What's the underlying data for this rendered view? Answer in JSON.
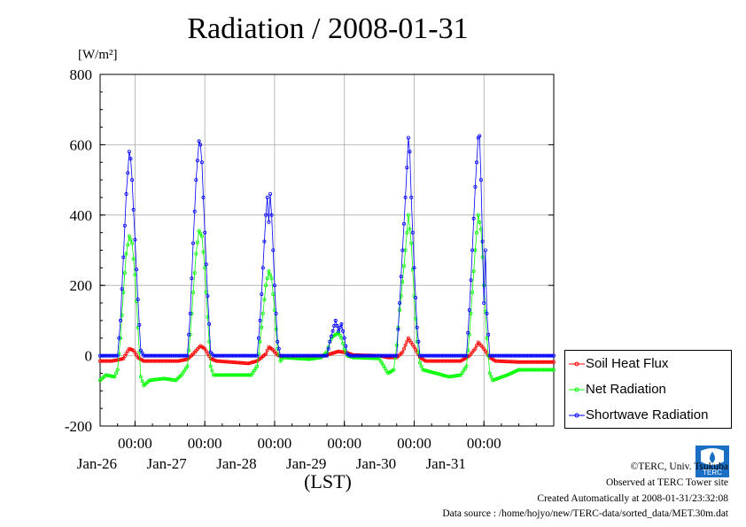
{
  "title": "Radiation / 2008-01-31",
  "unit": "[W/m²]",
  "xlabel": "(LST)",
  "legend": [
    {
      "label": "Soil Heat Flux",
      "color": "#ff0000"
    },
    {
      "label": "Net Radiation",
      "color": "#00ff00"
    },
    {
      "label": "Shortwave Radiation",
      "color": "#0000ff"
    }
  ],
  "credits": {
    "copyright": "©TERC, Univ. Tsukuba",
    "observed": "Observed at TERC Tower site",
    "created": "Created Automatically at 2008-01-31/23:32:08",
    "source": "Data source : /home/hojyo/new/TERC-data/sorted_data/MET.30m.dat"
  },
  "logo_text": "TERC",
  "chart_data": {
    "type": "line",
    "title": "Radiation / 2008-01-31",
    "ylabel": "[W/m²]",
    "xlabel": "(LST)",
    "ylim": [
      -200,
      800
    ],
    "yticks": [
      -200,
      0,
      200,
      400,
      600,
      800
    ],
    "xlim": [
      "2008-01-25T12:00",
      "2008-02-01T00:00"
    ],
    "xticks": [
      "00:00",
      "00:00",
      "00:00",
      "00:00",
      "00:00",
      "00:00"
    ],
    "xtick_days": [
      "Jan-26",
      "Jan-27",
      "Jan-28",
      "Jan-29",
      "Jan-30",
      "Jan-31"
    ],
    "xtick_times": [
      "2008-01-26T00:00",
      "2008-01-27T00:00",
      "2008-01-28T00:00",
      "2008-01-29T00:00",
      "2008-01-30T00:00",
      "2008-01-31T00:00"
    ],
    "grid": true,
    "legend_position": "right",
    "series": [
      {
        "name": "Soil Heat Flux",
        "color": "#ff0000",
        "points": [
          [
            "2008-01-25T12:00",
            -15
          ],
          [
            "2008-01-25T16:00",
            -15
          ],
          [
            "2008-01-25T18:00",
            -12
          ],
          [
            "2008-01-25T20:00",
            -8
          ],
          [
            "2008-01-25T22:00",
            20
          ],
          [
            "2008-01-25T23:30",
            15
          ],
          [
            "2008-01-26T01:00",
            -5
          ],
          [
            "2008-01-26T03:00",
            -15
          ],
          [
            "2008-01-26T10:00",
            -15
          ],
          [
            "2008-01-26T15:00",
            -15
          ],
          [
            "2008-01-26T18:00",
            -10
          ],
          [
            "2008-01-26T20:00",
            5
          ],
          [
            "2008-01-26T22:30",
            28
          ],
          [
            "2008-01-27T00:00",
            20
          ],
          [
            "2008-01-27T02:00",
            -8
          ],
          [
            "2008-01-27T04:00",
            -15
          ],
          [
            "2008-01-27T12:00",
            -20
          ],
          [
            "2008-01-27T15:00",
            -22
          ],
          [
            "2008-01-27T18:00",
            -15
          ],
          [
            "2008-01-27T21:00",
            5
          ],
          [
            "2008-01-27T22:00",
            25
          ],
          [
            "2008-01-27T23:00",
            20
          ],
          [
            "2008-01-28T01:00",
            2
          ],
          [
            "2008-01-28T03:00",
            -5
          ],
          [
            "2008-01-28T12:00",
            -5
          ],
          [
            "2008-01-28T16:00",
            -3
          ],
          [
            "2008-01-28T19:00",
            5
          ],
          [
            "2008-01-28T22:00",
            12
          ],
          [
            "2008-01-29T01:00",
            8
          ],
          [
            "2008-01-29T03:00",
            2
          ],
          [
            "2008-01-29T12:00",
            0
          ],
          [
            "2008-01-29T15:00",
            -5
          ],
          [
            "2008-01-29T18:00",
            -5
          ],
          [
            "2008-01-29T20:00",
            10
          ],
          [
            "2008-01-29T22:00",
            50
          ],
          [
            "2008-01-30T00:00",
            25
          ],
          [
            "2008-01-30T02:00",
            -5
          ],
          [
            "2008-01-30T04:00",
            -15
          ],
          [
            "2008-01-30T12:00",
            -15
          ],
          [
            "2008-01-30T16:00",
            -15
          ],
          [
            "2008-01-30T19:00",
            0
          ],
          [
            "2008-01-30T21:00",
            20
          ],
          [
            "2008-01-30T22:00",
            38
          ],
          [
            "2008-01-30T23:30",
            25
          ],
          [
            "2008-01-31T02:00",
            -5
          ],
          [
            "2008-01-31T04:00",
            -15
          ],
          [
            "2008-01-31T12:00",
            -18
          ]
        ]
      },
      {
        "name": "Net Radiation",
        "color": "#00ff00",
        "points": [
          [
            "2008-01-25T12:00",
            -70
          ],
          [
            "2008-01-25T14:00",
            -55
          ],
          [
            "2008-01-25T17:00",
            -60
          ],
          [
            "2008-01-25T18:00",
            -40
          ],
          [
            "2008-01-25T19:00",
            50
          ],
          [
            "2008-01-25T20:00",
            180
          ],
          [
            "2008-01-25T21:00",
            290
          ],
          [
            "2008-01-25T22:00",
            340
          ],
          [
            "2008-01-25T23:00",
            320
          ],
          [
            "2008-01-26T00:00",
            230
          ],
          [
            "2008-01-26T01:00",
            80
          ],
          [
            "2008-01-26T02:00",
            -60
          ],
          [
            "2008-01-26T03:00",
            -85
          ],
          [
            "2008-01-26T05:00",
            -70
          ],
          [
            "2008-01-26T10:00",
            -65
          ],
          [
            "2008-01-26T14:00",
            -70
          ],
          [
            "2008-01-26T16:00",
            -55
          ],
          [
            "2008-01-26T18:00",
            -30
          ],
          [
            "2008-01-26T19:00",
            60
          ],
          [
            "2008-01-26T20:00",
            180
          ],
          [
            "2008-01-26T21:00",
            290
          ],
          [
            "2008-01-26T22:00",
            355
          ],
          [
            "2008-01-26T23:00",
            340
          ],
          [
            "2008-01-27T00:00",
            250
          ],
          [
            "2008-01-27T01:00",
            110
          ],
          [
            "2008-01-27T02:00",
            -30
          ],
          [
            "2008-01-27T03:00",
            -55
          ],
          [
            "2008-01-27T12:00",
            -55
          ],
          [
            "2008-01-27T16:00",
            -55
          ],
          [
            "2008-01-27T18:00",
            -30
          ],
          [
            "2008-01-27T19:00",
            40
          ],
          [
            "2008-01-27T20:00",
            120
          ],
          [
            "2008-01-27T21:00",
            200
          ],
          [
            "2008-01-27T22:00",
            240
          ],
          [
            "2008-01-27T23:00",
            220
          ],
          [
            "2008-01-28T00:00",
            130
          ],
          [
            "2008-01-28T01:00",
            20
          ],
          [
            "2008-01-28T02:00",
            -15
          ],
          [
            "2008-01-28T03:00",
            -5
          ],
          [
            "2008-01-28T12:00",
            -10
          ],
          [
            "2008-01-28T16:00",
            -5
          ],
          [
            "2008-01-28T18:00",
            10
          ],
          [
            "2008-01-28T19:00",
            40
          ],
          [
            "2008-01-28T20:00",
            55
          ],
          [
            "2008-01-28T21:00",
            60
          ],
          [
            "2008-01-28T22:00",
            65
          ],
          [
            "2008-01-28T23:00",
            50
          ],
          [
            "2008-01-29T00:00",
            20
          ],
          [
            "2008-01-29T01:00",
            0
          ],
          [
            "2008-01-29T03:00",
            -5
          ],
          [
            "2008-01-29T12:00",
            -8
          ],
          [
            "2008-01-29T15:00",
            -50
          ],
          [
            "2008-01-29T17:00",
            -40
          ],
          [
            "2008-01-29T18:00",
            30
          ],
          [
            "2008-01-29T19:00",
            130
          ],
          [
            "2008-01-29T20:00",
            210
          ],
          [
            "2008-01-29T21:00",
            300
          ],
          [
            "2008-01-29T22:00",
            400
          ],
          [
            "2008-01-29T23:00",
            320
          ],
          [
            "2008-01-30T00:00",
            170
          ],
          [
            "2008-01-30T01:00",
            40
          ],
          [
            "2008-01-30T02:00",
            -20
          ],
          [
            "2008-01-30T03:00",
            -40
          ],
          [
            "2008-01-30T12:00",
            -60
          ],
          [
            "2008-01-30T16:00",
            -55
          ],
          [
            "2008-01-30T18:00",
            -30
          ],
          [
            "2008-01-30T19:00",
            60
          ],
          [
            "2008-01-30T20:00",
            180
          ],
          [
            "2008-01-30T21:00",
            300
          ],
          [
            "2008-01-30T22:00",
            400
          ],
          [
            "2008-01-30T23:00",
            360
          ],
          [
            "2008-01-31T00:00",
            200
          ],
          [
            "2008-01-31T01:00",
            50
          ],
          [
            "2008-01-31T02:00",
            -50
          ],
          [
            "2008-01-31T03:00",
            -70
          ],
          [
            "2008-01-31T08:00",
            -55
          ],
          [
            "2008-01-31T12:00",
            -40
          ]
        ]
      },
      {
        "name": "Shortwave Radiation",
        "color": "#0000ff",
        "points": [
          [
            "2008-01-25T12:00",
            0
          ],
          [
            "2008-01-25T18:00",
            0
          ],
          [
            "2008-01-25T19:00",
            100
          ],
          [
            "2008-01-25T20:00",
            280
          ],
          [
            "2008-01-25T21:00",
            460
          ],
          [
            "2008-01-25T22:00",
            580
          ],
          [
            "2008-01-25T22:30",
            560
          ],
          [
            "2008-01-25T23:00",
            500
          ],
          [
            "2008-01-26T00:00",
            330
          ],
          [
            "2008-01-26T01:00",
            160
          ],
          [
            "2008-01-26T02:00",
            15
          ],
          [
            "2008-01-26T03:00",
            0
          ],
          [
            "2008-01-26T18:00",
            0
          ],
          [
            "2008-01-26T19:00",
            120
          ],
          [
            "2008-01-26T20:00",
            320
          ],
          [
            "2008-01-26T21:00",
            500
          ],
          [
            "2008-01-26T22:00",
            610
          ],
          [
            "2008-01-26T22:30",
            600
          ],
          [
            "2008-01-26T23:00",
            550
          ],
          [
            "2008-01-27T00:00",
            350
          ],
          [
            "2008-01-27T01:00",
            170
          ],
          [
            "2008-01-27T02:00",
            10
          ],
          [
            "2008-01-27T03:00",
            0
          ],
          [
            "2008-01-27T18:00",
            0
          ],
          [
            "2008-01-27T19:00",
            100
          ],
          [
            "2008-01-27T20:00",
            250
          ],
          [
            "2008-01-27T21:00",
            400
          ],
          [
            "2008-01-27T21:30",
            450
          ],
          [
            "2008-01-27T22:00",
            380
          ],
          [
            "2008-01-27T22:30",
            460
          ],
          [
            "2008-01-27T23:00",
            400
          ],
          [
            "2008-01-28T00:00",
            200
          ],
          [
            "2008-01-28T01:00",
            40
          ],
          [
            "2008-01-28T02:00",
            0
          ],
          [
            "2008-01-28T18:00",
            0
          ],
          [
            "2008-01-28T19:00",
            40
          ],
          [
            "2008-01-28T20:00",
            70
          ],
          [
            "2008-01-28T21:00",
            100
          ],
          [
            "2008-01-28T22:00",
            70
          ],
          [
            "2008-01-28T23:00",
            90
          ],
          [
            "2008-01-29T00:00",
            50
          ],
          [
            "2008-01-29T01:00",
            5
          ],
          [
            "2008-01-29T02:00",
            0
          ],
          [
            "2008-01-29T18:00",
            0
          ],
          [
            "2008-01-29T19:00",
            150
          ],
          [
            "2008-01-29T20:00",
            300
          ],
          [
            "2008-01-29T21:00",
            450
          ],
          [
            "2008-01-29T22:00",
            620
          ],
          [
            "2008-01-29T22:30",
            580
          ],
          [
            "2008-01-29T23:00",
            450
          ],
          [
            "2008-01-30T00:00",
            250
          ],
          [
            "2008-01-30T01:00",
            80
          ],
          [
            "2008-01-30T02:00",
            0
          ],
          [
            "2008-01-30T18:00",
            0
          ],
          [
            "2008-01-30T19:00",
            130
          ],
          [
            "2008-01-30T20:00",
            300
          ],
          [
            "2008-01-30T21:00",
            480
          ],
          [
            "2008-01-30T22:00",
            620
          ],
          [
            "2008-01-30T22:30",
            625
          ],
          [
            "2008-01-30T23:00",
            500
          ],
          [
            "2008-01-31T00:00",
            150
          ],
          [
            "2008-01-31T00:30",
            300
          ],
          [
            "2008-01-31T01:00",
            120
          ],
          [
            "2008-01-31T02:00",
            0
          ],
          [
            "2008-01-31T12:00",
            0
          ]
        ]
      }
    ]
  }
}
